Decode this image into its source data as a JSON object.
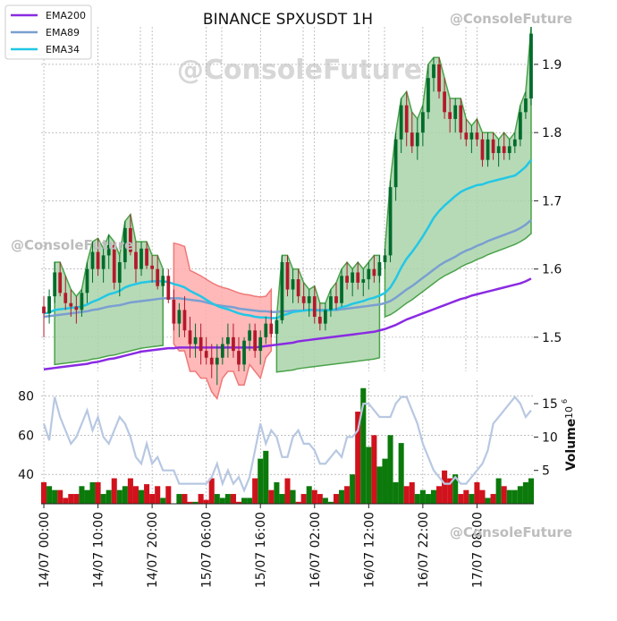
{
  "chart_data": {
    "type": "candlestick",
    "title": "BINANCE SPXUSDT 1H",
    "watermark": "@ConsoleFuture",
    "colors": {
      "up": "#006b2b",
      "down": "#b3192b",
      "ema200": "#8a2be2",
      "ema89": "#7a9fd0",
      "ema34": "#22c7e6",
      "cloud_green": "#a9d3a9",
      "cloud_red": "#ffadad",
      "vol_up": "#0b7a0b",
      "vol_down": "#d0121c",
      "secondary_line": "#b8c8e2"
    },
    "legend": {
      "position": "top-left",
      "items": [
        {
          "label": "EMA200",
          "color": "#8a2be2"
        },
        {
          "label": "EMA89",
          "color": "#7a9fd0"
        },
        {
          "label": "EMA34",
          "color": "#22c7e6"
        }
      ]
    },
    "price_axis": {
      "ticks": [
        "1.5",
        "1.6",
        "1.7",
        "1.8",
        "1.9"
      ],
      "ylim": [
        1.45,
        1.955
      ]
    },
    "volume_axis": {
      "left_ticks": [
        "40",
        "60",
        "80"
      ],
      "right_ticks": [
        "5",
        "10",
        "15"
      ],
      "right_label": "Volume",
      "right_exponent": "10",
      "right_exponent_power": "6"
    },
    "x_ticks": [
      "14/07 00:00",
      "14/07 10:00",
      "14/07 20:00",
      "15/07 06:00",
      "15/07 16:00",
      "16/07 02:00",
      "16/07 12:00",
      "16/07 22:00",
      "17/07 08:00"
    ],
    "ohlc": [
      [
        1.545,
        1.56,
        1.5,
        1.535
      ],
      [
        1.535,
        1.57,
        1.52,
        1.56
      ],
      [
        1.56,
        1.61,
        1.55,
        1.595
      ],
      [
        1.595,
        1.61,
        1.56,
        1.565
      ],
      [
        1.565,
        1.59,
        1.54,
        1.55
      ],
      [
        1.55,
        1.57,
        1.53,
        1.545
      ],
      [
        1.545,
        1.56,
        1.52,
        1.54
      ],
      [
        1.54,
        1.57,
        1.53,
        1.565
      ],
      [
        1.565,
        1.61,
        1.55,
        1.6
      ],
      [
        1.6,
        1.64,
        1.58,
        1.625
      ],
      [
        1.625,
        1.645,
        1.59,
        1.6
      ],
      [
        1.6,
        1.63,
        1.58,
        1.62
      ],
      [
        1.62,
        1.65,
        1.6,
        1.635
      ],
      [
        1.635,
        1.64,
        1.57,
        1.58
      ],
      [
        1.58,
        1.62,
        1.56,
        1.61
      ],
      [
        1.61,
        1.67,
        1.6,
        1.66
      ],
      [
        1.66,
        1.68,
        1.62,
        1.625
      ],
      [
        1.625,
        1.64,
        1.58,
        1.6
      ],
      [
        1.6,
        1.64,
        1.59,
        1.63
      ],
      [
        1.63,
        1.64,
        1.6,
        1.605
      ],
      [
        1.605,
        1.62,
        1.58,
        1.6
      ],
      [
        1.6,
        1.62,
        1.57,
        1.575
      ],
      [
        1.575,
        1.6,
        1.56,
        1.59
      ],
      [
        1.59,
        1.6,
        1.55,
        1.555
      ],
      [
        1.555,
        1.57,
        1.51,
        1.52
      ],
      [
        1.52,
        1.55,
        1.5,
        1.54
      ],
      [
        1.54,
        1.56,
        1.5,
        1.51
      ],
      [
        1.51,
        1.53,
        1.47,
        1.49
      ],
      [
        1.49,
        1.52,
        1.47,
        1.5
      ],
      [
        1.5,
        1.52,
        1.46,
        1.48
      ],
      [
        1.48,
        1.5,
        1.46,
        1.47
      ],
      [
        1.47,
        1.49,
        1.44,
        1.46
      ],
      [
        1.46,
        1.49,
        1.43,
        1.47
      ],
      [
        1.47,
        1.5,
        1.46,
        1.49
      ],
      [
        1.49,
        1.52,
        1.47,
        1.5
      ],
      [
        1.5,
        1.52,
        1.47,
        1.48
      ],
      [
        1.48,
        1.5,
        1.45,
        1.46
      ],
      [
        1.46,
        1.5,
        1.45,
        1.495
      ],
      [
        1.495,
        1.52,
        1.48,
        1.51
      ],
      [
        1.51,
        1.52,
        1.47,
        1.48
      ],
      [
        1.48,
        1.51,
        1.46,
        1.5
      ],
      [
        1.5,
        1.53,
        1.49,
        1.52
      ],
      [
        1.52,
        1.54,
        1.5,
        1.505
      ],
      [
        1.505,
        1.53,
        1.49,
        1.525
      ],
      [
        1.525,
        1.62,
        1.52,
        1.61
      ],
      [
        1.61,
        1.62,
        1.56,
        1.57
      ],
      [
        1.57,
        1.6,
        1.55,
        1.585
      ],
      [
        1.585,
        1.6,
        1.55,
        1.56
      ],
      [
        1.56,
        1.58,
        1.54,
        1.55
      ],
      [
        1.55,
        1.57,
        1.53,
        1.56
      ],
      [
        1.56,
        1.575,
        1.52,
        1.53
      ],
      [
        1.53,
        1.55,
        1.51,
        1.52
      ],
      [
        1.52,
        1.55,
        1.51,
        1.54
      ],
      [
        1.54,
        1.57,
        1.53,
        1.56
      ],
      [
        1.56,
        1.58,
        1.54,
        1.55
      ],
      [
        1.55,
        1.6,
        1.545,
        1.59
      ],
      [
        1.59,
        1.61,
        1.57,
        1.58
      ],
      [
        1.58,
        1.6,
        1.56,
        1.595
      ],
      [
        1.595,
        1.61,
        1.57,
        1.58
      ],
      [
        1.58,
        1.6,
        1.56,
        1.585
      ],
      [
        1.585,
        1.61,
        1.57,
        1.6
      ],
      [
        1.6,
        1.62,
        1.58,
        1.59
      ],
      [
        1.59,
        1.62,
        1.58,
        1.61
      ],
      [
        1.61,
        1.63,
        1.6,
        1.62
      ],
      [
        1.62,
        1.73,
        1.61,
        1.72
      ],
      [
        1.72,
        1.8,
        1.7,
        1.79
      ],
      [
        1.79,
        1.85,
        1.77,
        1.84
      ],
      [
        1.84,
        1.86,
        1.78,
        1.8
      ],
      [
        1.8,
        1.83,
        1.77,
        1.78
      ],
      [
        1.78,
        1.82,
        1.76,
        1.8
      ],
      [
        1.8,
        1.84,
        1.78,
        1.83
      ],
      [
        1.83,
        1.9,
        1.82,
        1.88
      ],
      [
        1.88,
        1.91,
        1.86,
        1.9
      ],
      [
        1.9,
        1.91,
        1.85,
        1.86
      ],
      [
        1.86,
        1.88,
        1.82,
        1.83
      ],
      [
        1.83,
        1.85,
        1.8,
        1.82
      ],
      [
        1.82,
        1.85,
        1.8,
        1.84
      ],
      [
        1.84,
        1.85,
        1.79,
        1.8
      ],
      [
        1.8,
        1.82,
        1.78,
        1.79
      ],
      [
        1.79,
        1.81,
        1.77,
        1.8
      ],
      [
        1.8,
        1.82,
        1.78,
        1.79
      ],
      [
        1.79,
        1.8,
        1.75,
        1.76
      ],
      [
        1.76,
        1.8,
        1.75,
        1.79
      ],
      [
        1.79,
        1.8,
        1.76,
        1.77
      ],
      [
        1.77,
        1.79,
        1.75,
        1.78
      ],
      [
        1.78,
        1.8,
        1.76,
        1.77
      ],
      [
        1.77,
        1.79,
        1.76,
        1.78
      ],
      [
        1.78,
        1.8,
        1.77,
        1.79
      ],
      [
        1.79,
        1.84,
        1.78,
        1.83
      ],
      [
        1.83,
        1.86,
        1.82,
        1.85
      ],
      [
        1.85,
        1.955,
        1.84,
        1.945
      ]
    ],
    "ema34": [
      1.535,
      1.536,
      1.54,
      1.541,
      1.542,
      1.543,
      1.544,
      1.545,
      1.548,
      1.552,
      1.555,
      1.559,
      1.563,
      1.565,
      1.568,
      1.573,
      1.576,
      1.578,
      1.58,
      1.581,
      1.582,
      1.582,
      1.582,
      1.581,
      1.578,
      1.576,
      1.573,
      1.568,
      1.564,
      1.56,
      1.555,
      1.55,
      1.546,
      1.543,
      1.541,
      1.538,
      1.535,
      1.533,
      1.532,
      1.53,
      1.529,
      1.529,
      1.528,
      1.528,
      1.532,
      1.534,
      1.537,
      1.538,
      1.539,
      1.54,
      1.54,
      1.539,
      1.539,
      1.54,
      1.541,
      1.544,
      1.546,
      1.549,
      1.551,
      1.553,
      1.556,
      1.558,
      1.561,
      1.565,
      1.573,
      1.586,
      1.602,
      1.615,
      1.625,
      1.636,
      1.648,
      1.661,
      1.675,
      1.685,
      1.693,
      1.7,
      1.707,
      1.713,
      1.717,
      1.72,
      1.723,
      1.724,
      1.727,
      1.729,
      1.731,
      1.733,
      1.735,
      1.737,
      1.743,
      1.75,
      1.76
    ],
    "ema89": [
      1.53,
      1.531,
      1.532,
      1.533,
      1.534,
      1.535,
      1.536,
      1.537,
      1.538,
      1.54,
      1.541,
      1.543,
      1.545,
      1.546,
      1.547,
      1.549,
      1.551,
      1.552,
      1.553,
      1.554,
      1.555,
      1.556,
      1.557,
      1.557,
      1.557,
      1.557,
      1.556,
      1.555,
      1.554,
      1.553,
      1.551,
      1.549,
      1.547,
      1.546,
      1.545,
      1.544,
      1.542,
      1.541,
      1.54,
      1.539,
      1.538,
      1.538,
      1.537,
      1.537,
      1.538,
      1.538,
      1.539,
      1.539,
      1.539,
      1.54,
      1.54,
      1.54,
      1.54,
      1.54,
      1.54,
      1.541,
      1.542,
      1.543,
      1.544,
      1.545,
      1.546,
      1.547,
      1.548,
      1.55,
      1.553,
      1.558,
      1.564,
      1.57,
      1.575,
      1.581,
      1.587,
      1.593,
      1.599,
      1.605,
      1.61,
      1.614,
      1.618,
      1.623,
      1.627,
      1.63,
      1.634,
      1.637,
      1.641,
      1.644,
      1.647,
      1.65,
      1.653,
      1.656,
      1.66,
      1.665,
      1.672
    ],
    "ema200": [
      1.453,
      1.454,
      1.455,
      1.456,
      1.457,
      1.458,
      1.459,
      1.46,
      1.461,
      1.463,
      1.464,
      1.466,
      1.468,
      1.469,
      1.471,
      1.473,
      1.475,
      1.477,
      1.479,
      1.48,
      1.481,
      1.482,
      1.483,
      1.484,
      1.484,
      1.485,
      1.485,
      1.485,
      1.485,
      1.485,
      1.485,
      1.485,
      1.485,
      1.485,
      1.485,
      1.485,
      1.485,
      1.485,
      1.485,
      1.485,
      1.486,
      1.487,
      1.488,
      1.489,
      1.49,
      1.491,
      1.492,
      1.494,
      1.495,
      1.496,
      1.497,
      1.498,
      1.499,
      1.5,
      1.501,
      1.502,
      1.503,
      1.504,
      1.505,
      1.506,
      1.507,
      1.508,
      1.51,
      1.512,
      1.515,
      1.518,
      1.522,
      1.526,
      1.529,
      1.532,
      1.535,
      1.538,
      1.541,
      1.544,
      1.547,
      1.55,
      1.553,
      1.556,
      1.558,
      1.561,
      1.563,
      1.565,
      1.567,
      1.569,
      1.571,
      1.573,
      1.575,
      1.577,
      1.579,
      1.582,
      1.586
    ],
    "volume": [
      36,
      34,
      32,
      32,
      28,
      30,
      30,
      34,
      32,
      36,
      36,
      30,
      32,
      38,
      32,
      34,
      38,
      34,
      32,
      35,
      30,
      34,
      28,
      34,
      24,
      30,
      30,
      26,
      26,
      30,
      27,
      38,
      30,
      28,
      30,
      30,
      26,
      28,
      28,
      38,
      48,
      52,
      32,
      36,
      30,
      38,
      32,
      26,
      30,
      34,
      32,
      30,
      28,
      26,
      30,
      32,
      34,
      40,
      72,
      84,
      54,
      60,
      44,
      48,
      60,
      36,
      56,
      34,
      36,
      30,
      32,
      30,
      32,
      34,
      42,
      38,
      40,
      30,
      32,
      30,
      36,
      32,
      28,
      30,
      38,
      34,
      32,
      32,
      34,
      36,
      38
    ],
    "volume2": [
      12,
      9.5,
      16,
      13,
      11,
      9,
      10,
      12,
      14,
      11,
      13,
      10,
      9,
      11,
      13,
      12,
      10,
      7,
      6,
      9,
      6,
      7,
      5,
      5,
      5,
      3,
      3,
      3,
      3,
      3,
      3,
      4,
      6,
      3,
      5,
      3,
      4,
      2,
      4,
      8,
      12,
      9,
      11,
      10,
      7,
      7,
      10,
      11,
      9,
      9,
      8,
      6,
      6,
      7,
      8,
      7,
      10,
      10,
      11,
      15,
      15,
      14,
      13,
      13,
      13,
      15,
      16,
      16,
      14,
      12,
      9,
      7,
      5,
      4,
      3,
      3,
      4,
      3,
      3,
      4,
      5,
      6,
      8,
      12,
      13,
      14,
      15,
      16,
      15,
      13,
      14
    ]
  }
}
